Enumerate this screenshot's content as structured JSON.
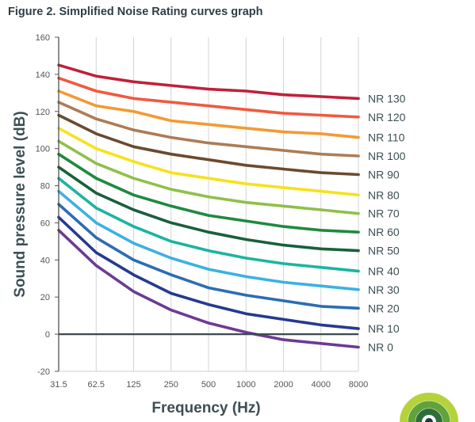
{
  "figure_title": "Figure 2. Simplified Noise Rating curves graph",
  "chart_data": {
    "type": "line",
    "title": "Figure 2. Simplified Noise Rating curves graph",
    "xlabel": "Frequency (Hz)",
    "ylabel": "Sound pressure level (dB)",
    "x": [
      "31.5",
      "62.5",
      "125",
      "250",
      "500",
      "1000",
      "2000",
      "4000",
      "8000"
    ],
    "ylim": [
      -20,
      160
    ],
    "yticks": [
      -20,
      0,
      20,
      40,
      60,
      80,
      100,
      120,
      140,
      160
    ],
    "grid": "vertical lines at each frequency",
    "legend": "curve labels at right end of each line",
    "series": [
      {
        "name": "NR 130",
        "color": "#c0203a",
        "values": [
          145,
          139,
          136,
          134,
          132,
          131,
          129,
          128,
          127
        ]
      },
      {
        "name": "NR 120",
        "color": "#f05a3e",
        "values": [
          138,
          131,
          127,
          125,
          123,
          121,
          119,
          118,
          117
        ]
      },
      {
        "name": "NR 110",
        "color": "#f39a33",
        "values": [
          131,
          123,
          120,
          115,
          113,
          111,
          109,
          108,
          106
        ]
      },
      {
        "name": "NR 100",
        "color": "#ad7c55",
        "values": [
          125,
          116,
          110,
          106,
          103,
          101,
          99,
          97,
          96
        ]
      },
      {
        "name": "NR 90",
        "color": "#6b4a2f",
        "values": [
          118,
          108,
          101,
          97,
          94,
          91,
          89,
          87,
          86
        ]
      },
      {
        "name": "NR 80",
        "color": "#f6e21b",
        "values": [
          111,
          100,
          93,
          87,
          84,
          81,
          79,
          77,
          75
        ]
      },
      {
        "name": "NR 70",
        "color": "#8fc04a",
        "values": [
          104,
          92,
          84,
          78,
          74,
          71,
          69,
          67,
          65
        ]
      },
      {
        "name": "NR 60",
        "color": "#1e8a3e",
        "values": [
          97,
          84,
          75,
          69,
          64,
          61,
          58,
          56,
          55
        ]
      },
      {
        "name": "NR 50",
        "color": "#19603b",
        "values": [
          90,
          76,
          67,
          60,
          55,
          51,
          48,
          46,
          45
        ]
      },
      {
        "name": "NR 40",
        "color": "#1ab5a2",
        "values": [
          84,
          68,
          58,
          50,
          45,
          41,
          38,
          36,
          34
        ]
      },
      {
        "name": "NR 30",
        "color": "#3cb1e2",
        "values": [
          77,
          60,
          49,
          41,
          35,
          31,
          28,
          26,
          24
        ]
      },
      {
        "name": "NR 20",
        "color": "#2c6db3",
        "values": [
          70,
          52,
          40,
          32,
          25,
          21,
          18,
          15,
          14
        ]
      },
      {
        "name": "NR 10",
        "color": "#263a8f",
        "values": [
          63,
          44,
          32,
          22,
          16,
          11,
          8,
          5,
          3
        ]
      },
      {
        "name": "NR 0",
        "color": "#6c3a93",
        "values": [
          56,
          37,
          23,
          13,
          6,
          1,
          -3,
          -5,
          -7
        ]
      }
    ]
  },
  "logo": {
    "colors": [
      "#b5d23a",
      "#5fa33a",
      "#2e6e3a",
      "#1d3b3a"
    ]
  }
}
